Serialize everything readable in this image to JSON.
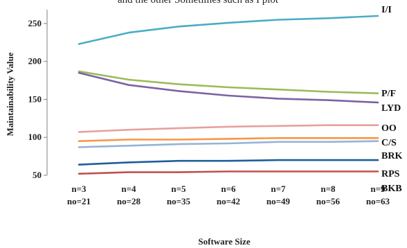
{
  "top_text_fragment": "and the other Sometimes such as I plot",
  "chart_data": {
    "type": "line",
    "title": "",
    "xlabel": "Software Size",
    "ylabel": "Maintainability Value",
    "ylim": [
      50,
      260
    ],
    "y_ticks": [
      50,
      100,
      150,
      200,
      250
    ],
    "grid": false,
    "legend": "labels at line ends (right)",
    "categories": [
      [
        "n=3",
        "no=21"
      ],
      [
        "n=4",
        "no=28"
      ],
      [
        "n=5",
        "no=35"
      ],
      [
        "n=6",
        "no=42"
      ],
      [
        "n=7",
        "no=49"
      ],
      [
        "n=8",
        "no=56"
      ],
      [
        "n=9",
        "no=63"
      ]
    ],
    "series": [
      {
        "name": "I/I",
        "color": "#4bacc6",
        "values": [
          223,
          238,
          246,
          251,
          255,
          257,
          260
        ]
      },
      {
        "name": "P/F",
        "color": "#9bbb59",
        "values": [
          187,
          176,
          170,
          166,
          163,
          160,
          158
        ]
      },
      {
        "name": "LYD",
        "color": "#7c62a3",
        "values": [
          185,
          169,
          161,
          155,
          151,
          149,
          146
        ]
      },
      {
        "name": "OO",
        "color": "#e6a19d",
        "values": [
          107,
          110,
          112,
          114,
          115,
          116,
          116
        ]
      },
      {
        "name": "C/S",
        "color": "#f79646",
        "values": [
          95,
          97,
          97,
          98,
          99,
          99,
          99
        ]
      },
      {
        "name": "BRK",
        "color": "#95b3d7",
        "values": [
          87,
          89,
          91,
          92,
          94,
          94,
          95
        ]
      },
      {
        "name": "RPS",
        "color": "#1f5d9c",
        "values": [
          64,
          67,
          69,
          69,
          70,
          70,
          70
        ]
      },
      {
        "name": "BKB",
        "color": "#c0504d",
        "values": [
          52,
          54,
          54,
          55,
          55,
          55,
          55
        ]
      }
    ]
  }
}
